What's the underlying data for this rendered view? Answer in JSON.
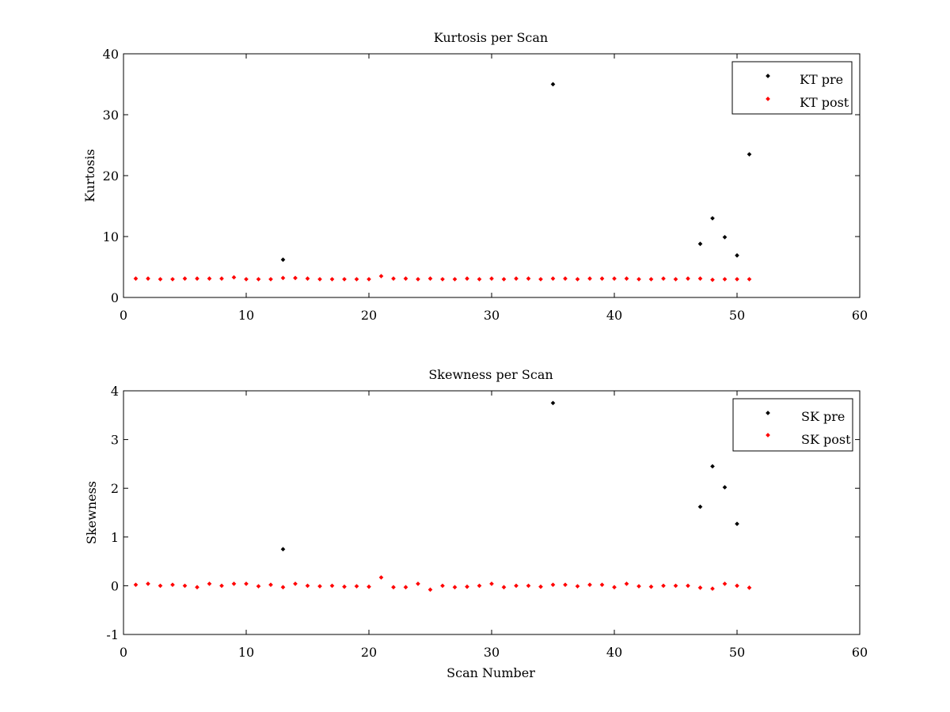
{
  "figure": {
    "background": "#ffffff"
  },
  "chart_data": [
    {
      "type": "scatter",
      "title": "Kurtosis per Scan",
      "xlabel": "",
      "ylabel": "Kurtosis",
      "xlim": [
        0,
        60
      ],
      "ylim": [
        0,
        40
      ],
      "xticks": [
        0,
        10,
        20,
        30,
        40,
        50,
        60
      ],
      "yticks": [
        0,
        10,
        20,
        30,
        40
      ],
      "grid": false,
      "legend_position": "top-right",
      "series": [
        {
          "name": "KT pre",
          "color": "#000000",
          "x": [
            13,
            35,
            47,
            48,
            49,
            50,
            51
          ],
          "y": [
            6.2,
            35.0,
            8.8,
            13.0,
            9.9,
            6.9,
            23.5
          ]
        },
        {
          "name": "KT post",
          "color": "#ff0000",
          "x": [
            1,
            2,
            3,
            4,
            5,
            6,
            7,
            8,
            9,
            10,
            11,
            12,
            13,
            14,
            15,
            16,
            17,
            18,
            19,
            20,
            21,
            22,
            23,
            24,
            25,
            26,
            27,
            28,
            29,
            30,
            31,
            32,
            33,
            34,
            35,
            36,
            37,
            38,
            39,
            40,
            41,
            42,
            43,
            44,
            45,
            46,
            47,
            48,
            49,
            50,
            51
          ],
          "y": [
            3.1,
            3.1,
            3.0,
            3.0,
            3.1,
            3.1,
            3.1,
            3.1,
            3.3,
            3.0,
            3.0,
            3.0,
            3.2,
            3.2,
            3.1,
            3.0,
            3.0,
            3.0,
            3.0,
            3.0,
            3.5,
            3.1,
            3.1,
            3.0,
            3.1,
            3.0,
            3.0,
            3.1,
            3.0,
            3.1,
            3.0,
            3.1,
            3.1,
            3.0,
            3.1,
            3.1,
            3.0,
            3.1,
            3.1,
            3.1,
            3.1,
            3.0,
            3.0,
            3.1,
            3.0,
            3.1,
            3.1,
            2.9,
            3.0,
            3.0,
            3.0
          ]
        }
      ]
    },
    {
      "type": "scatter",
      "title": "Skewness per Scan",
      "xlabel": "Scan Number",
      "ylabel": "Skewness",
      "xlim": [
        0,
        60
      ],
      "ylim": [
        -1,
        4
      ],
      "xticks": [
        0,
        10,
        20,
        30,
        40,
        50,
        60
      ],
      "yticks": [
        -1,
        0,
        1,
        2,
        3,
        4
      ],
      "grid": false,
      "legend_position": "top-right",
      "series": [
        {
          "name": "SK pre",
          "color": "#000000",
          "x": [
            13,
            35,
            47,
            48,
            49,
            50
          ],
          "y": [
            0.75,
            3.75,
            1.62,
            2.45,
            2.02,
            1.27
          ]
        },
        {
          "name": "SK post",
          "color": "#ff0000",
          "x": [
            1,
            2,
            3,
            4,
            5,
            6,
            7,
            8,
            9,
            10,
            11,
            12,
            13,
            14,
            15,
            16,
            17,
            18,
            19,
            20,
            21,
            22,
            23,
            24,
            25,
            26,
            27,
            28,
            29,
            30,
            31,
            32,
            33,
            34,
            35,
            36,
            37,
            38,
            39,
            40,
            41,
            42,
            43,
            44,
            45,
            46,
            47,
            48,
            49,
            50,
            51
          ],
          "y": [
            0.02,
            0.04,
            0.0,
            0.02,
            0.0,
            -0.03,
            0.04,
            0.0,
            0.04,
            0.04,
            -0.01,
            0.02,
            -0.03,
            0.04,
            0.0,
            -0.01,
            0.0,
            -0.02,
            -0.01,
            -0.02,
            0.17,
            -0.03,
            -0.03,
            0.04,
            -0.08,
            0.0,
            -0.03,
            -0.02,
            0.0,
            0.04,
            -0.03,
            0.0,
            0.0,
            -0.02,
            0.02,
            0.02,
            -0.01,
            0.02,
            0.02,
            -0.03,
            0.04,
            -0.01,
            -0.02,
            0.0,
            0.0,
            0.0,
            -0.04,
            -0.06,
            0.04,
            0.0,
            -0.04
          ]
        }
      ]
    }
  ]
}
